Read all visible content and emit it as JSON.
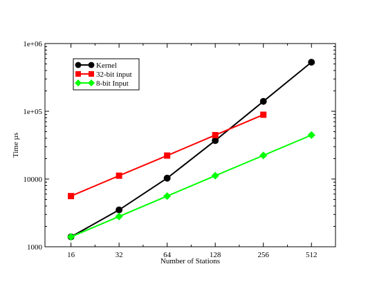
{
  "chart_data": {
    "type": "line",
    "title": "",
    "xlabel": "Number of Stations",
    "ylabel": "Time µs",
    "x_scale": "log2",
    "y_scale": "log10",
    "categories": [
      "16",
      "32",
      "64",
      "128",
      "256",
      "512"
    ],
    "x": [
      16,
      32,
      64,
      128,
      256,
      512
    ],
    "xlim": [
      11,
      724
    ],
    "ylim": [
      1000,
      1000000
    ],
    "y_ticks": [
      1000,
      10000,
      100000,
      1000000
    ],
    "y_tick_labels": [
      "1000",
      "10000",
      "1e+05",
      "1e+06"
    ],
    "grid": false,
    "legend_position": "top-left",
    "series": [
      {
        "name": "Kernel",
        "color": "#000000",
        "marker": "circle",
        "x": [
          16,
          32,
          64,
          128,
          256,
          512
        ],
        "values": [
          1400,
          3500,
          10300,
          37000,
          140000,
          530000
        ]
      },
      {
        "name": "32-bit input",
        "color": "#ff0000",
        "marker": "square",
        "x": [
          16,
          32,
          64,
          128,
          256
        ],
        "values": [
          5600,
          11200,
          22200,
          44500,
          89000
        ]
      },
      {
        "name": "8-bit Input",
        "color": "#00ff00",
        "marker": "diamond",
        "x": [
          16,
          32,
          64,
          128,
          256,
          512
        ],
        "values": [
          1400,
          2800,
          5600,
          11200,
          22300,
          44600
        ]
      }
    ]
  }
}
